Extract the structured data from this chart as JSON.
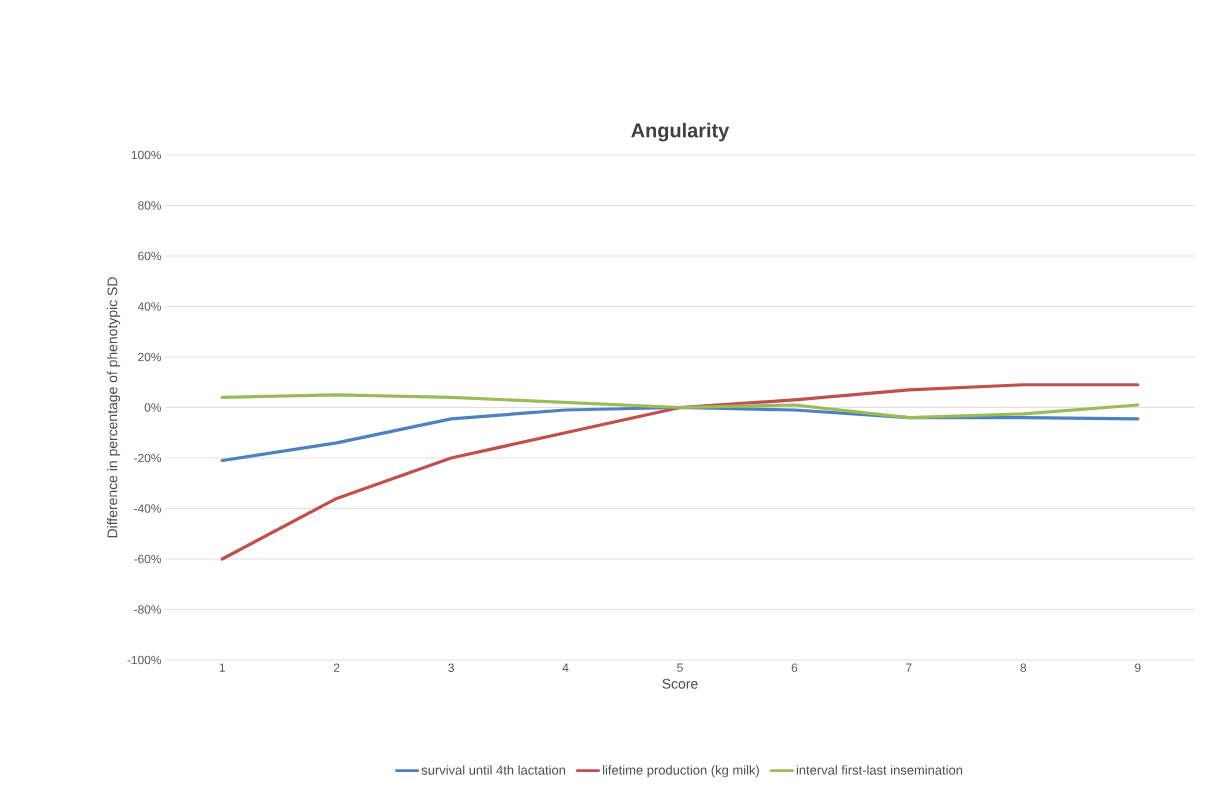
{
  "chart_data": {
    "type": "line",
    "title": "Angularity",
    "xlabel": "Score",
    "ylabel": "Difference in percentage of phenotypic SD",
    "categories": [
      "1",
      "2",
      "3",
      "4",
      "5",
      "6",
      "7",
      "8",
      "9"
    ],
    "ylim": [
      -100,
      100
    ],
    "yticks": [
      {
        "value": -100,
        "label": "-100%"
      },
      {
        "value": -80,
        "label": "-80%"
      },
      {
        "value": -60,
        "label": "-60%"
      },
      {
        "value": -40,
        "label": "-40%"
      },
      {
        "value": -20,
        "label": "-20%"
      },
      {
        "value": 0,
        "label": "0%"
      },
      {
        "value": 20,
        "label": "20%"
      },
      {
        "value": 40,
        "label": "40%"
      },
      {
        "value": 60,
        "label": "60%"
      },
      {
        "value": 80,
        "label": "80%"
      },
      {
        "value": 100,
        "label": "100%"
      }
    ],
    "grid": "y",
    "legend": "bottom",
    "marker": "none",
    "line_style": "solid",
    "series": [
      {
        "name": "survival until 4th lactation",
        "color": "#4f81bd",
        "values": [
          -21,
          -14,
          -4.5,
          -1,
          0,
          -1,
          -4,
          -4,
          -4.5
        ]
      },
      {
        "name": "lifetime production (kg milk)",
        "color": "#c0504d",
        "values": [
          -60,
          -36,
          -20,
          -10,
          0,
          3,
          7,
          9,
          9
        ]
      },
      {
        "name": "interval first-last insemination",
        "color": "#9bbb59",
        "values": [
          4,
          5,
          4,
          2,
          0,
          1,
          -4,
          -2.5,
          1
        ]
      }
    ]
  }
}
